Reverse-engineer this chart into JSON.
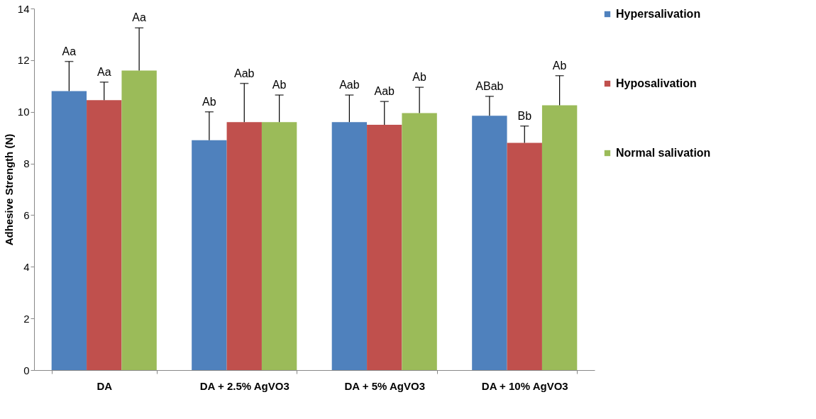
{
  "chart_data": {
    "type": "bar",
    "ylabel": "Adhesive Strength (N)",
    "categories": [
      "DA",
      "DA + 2.5% AgVO3",
      "DA + 5% AgVO3",
      "DA + 10% AgVO3"
    ],
    "series": [
      {
        "name": "Hypersalivation",
        "color": "#4f81bd",
        "values": [
          10.8,
          8.9,
          9.6,
          9.85
        ],
        "errors": [
          [
            10.8,
            11.95
          ],
          [
            8.9,
            10.0
          ],
          [
            9.6,
            10.65
          ],
          [
            9.85,
            10.6
          ]
        ]
      },
      {
        "name": "Hyposalivation",
        "color": "#c0504d",
        "values": [
          10.45,
          9.6,
          9.5,
          8.8
        ],
        "errors": [
          [
            10.45,
            11.15
          ],
          [
            9.6,
            11.1
          ],
          [
            9.5,
            10.4
          ],
          [
            8.8,
            9.45
          ]
        ]
      },
      {
        "name": "Normal salivation",
        "color": "#9bbb59",
        "values": [
          11.6,
          9.6,
          9.95,
          10.25
        ],
        "errors": [
          [
            11.6,
            13.25
          ],
          [
            9.6,
            10.65
          ],
          [
            9.95,
            10.95
          ],
          [
            10.25,
            11.4
          ]
        ]
      }
    ],
    "annotations": [
      "Aa",
      "Aa",
      "Aa",
      "Ab",
      "Aab",
      "Ab",
      "Aab",
      "Aab",
      "Ab",
      "ABab",
      "Bb",
      "Ab"
    ],
    "ylim": [
      0,
      14
    ],
    "yticks": [
      0,
      2,
      4,
      6,
      8,
      10,
      12,
      14
    ],
    "grid": false,
    "legend": "right"
  }
}
